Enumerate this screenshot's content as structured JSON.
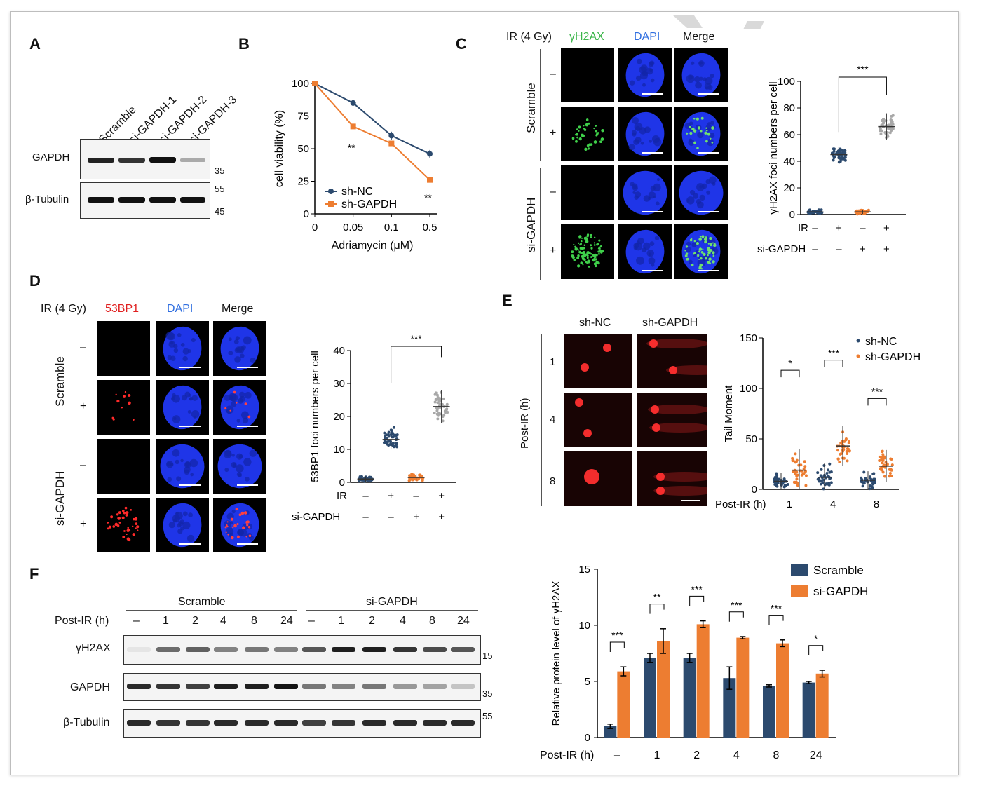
{
  "panels": {
    "A": "A",
    "B": "B",
    "C": "C",
    "D": "D",
    "E": "E",
    "F": "F"
  },
  "panelA": {
    "lanes": [
      "Scramble",
      "si-GAPDH-1",
      "si-GAPDH-2",
      "si-GAPDH-3"
    ],
    "rows": [
      "GAPDH",
      "β-Tubulin"
    ],
    "markers": [
      "35",
      "55",
      "45"
    ]
  },
  "panelC": {
    "ir_header": "IR (4 Gy)",
    "channels": [
      "γH2AX",
      "DAPI",
      "Merge"
    ],
    "groups": [
      "Scramble",
      "si-GAPDH"
    ],
    "row_signs": [
      "–",
      "+",
      "–",
      "+"
    ]
  },
  "panelD": {
    "ir_header": "IR (4 Gy)",
    "channels": [
      "53BP1",
      "DAPI",
      "Merge"
    ],
    "groups": [
      "Scramble",
      "si-GAPDH"
    ],
    "row_signs": [
      "–",
      "+",
      "–",
      "+"
    ]
  },
  "panelE": {
    "columns": [
      "sh-NC",
      "sh-GAPDH"
    ],
    "axis_label": "Post-IR (h)",
    "rows": [
      "1",
      "4",
      "8"
    ]
  },
  "panelF": {
    "groups": [
      "Scramble",
      "si-GAPDH"
    ],
    "post_ir_label": "Post-IR (h)",
    "timepoints": [
      "–",
      "1",
      "2",
      "4",
      "8",
      "24",
      "–",
      "1",
      "2",
      "4",
      "8",
      "24"
    ],
    "rows": [
      "γH2AX",
      "GAPDH",
      "β-Tubulin"
    ],
    "markers": [
      "15",
      "35",
      "55"
    ]
  },
  "chart_data": [
    {
      "id": "B",
      "type": "line",
      "xlabel": "Adriamycin (μM)",
      "ylabel": "cell viability (%)",
      "categories": [
        "0",
        "0.05",
        "0.1",
        "0.5"
      ],
      "ylim": [
        0,
        100
      ],
      "yticks": [
        "0",
        "25",
        "50",
        "75",
        "100"
      ],
      "series": [
        {
          "name": "sh-NC",
          "values": [
            100,
            85,
            60,
            46
          ],
          "errors": [
            0,
            2,
            3,
            3
          ]
        },
        {
          "name": "sh-GAPDH",
          "values": [
            100,
            67,
            54,
            26
          ],
          "errors": [
            0,
            2,
            1,
            2
          ]
        }
      ],
      "annotations": [
        "**",
        "**"
      ],
      "colors": {
        "sh-NC": "#2c4a6e",
        "sh-GAPDH": "#ed7d31"
      }
    },
    {
      "id": "C",
      "type": "scatter",
      "ylabel": "γH2AX foci numbers per cell",
      "ylim": [
        0,
        100
      ],
      "yticks": [
        "0",
        "20",
        "40",
        "60",
        "80",
        "100"
      ],
      "groups": [
        {
          "ir": "–",
          "si": "–",
          "mean": 2,
          "sd": 1.5
        },
        {
          "ir": "+",
          "si": "–",
          "mean": 45,
          "sd": 6
        },
        {
          "ir": "–",
          "si": "+",
          "mean": 2,
          "sd": 1.5
        },
        {
          "ir": "+",
          "si": "+",
          "mean": 66,
          "sd": 10
        }
      ],
      "row_labels": [
        "IR",
        "si-GAPDH"
      ],
      "significance": "***",
      "colors": [
        "#2c4a6e",
        "#2c4a6e",
        "#ed7d31",
        "#a8a8a8"
      ]
    },
    {
      "id": "D",
      "type": "scatter",
      "ylabel": "53BP1 foci numbers per cell",
      "ylim": [
        0,
        40
      ],
      "yticks": [
        "0",
        "10",
        "20",
        "30",
        "40"
      ],
      "groups": [
        {
          "ir": "–",
          "si": "–",
          "mean": 1,
          "sd": 0.8
        },
        {
          "ir": "+",
          "si": "–",
          "mean": 13,
          "sd": 3
        },
        {
          "ir": "–",
          "si": "+",
          "mean": 1.5,
          "sd": 1
        },
        {
          "ir": "+",
          "si": "+",
          "mean": 23,
          "sd": 5
        }
      ],
      "row_labels": [
        "IR",
        "si-GAPDH"
      ],
      "significance": "***",
      "colors": [
        "#2c4a6e",
        "#2c4a6e",
        "#ed7d31",
        "#a8a8a8"
      ]
    },
    {
      "id": "E",
      "type": "scatter",
      "ylabel": "Tail Moment",
      "xlabel": "Post-IR (h)",
      "categories": [
        "1",
        "4",
        "8"
      ],
      "ylim": [
        0,
        150
      ],
      "yticks": [
        "0",
        "50",
        "100",
        "150"
      ],
      "series": [
        {
          "name": "sh-NC",
          "means": [
            8,
            12,
            9
          ],
          "sds": [
            8,
            14,
            9
          ]
        },
        {
          "name": "sh-GAPDH",
          "means": [
            19,
            43,
            23
          ],
          "sds": [
            21,
            20,
            16
          ]
        }
      ],
      "significance": [
        "*",
        "***",
        "***"
      ],
      "colors": {
        "sh-NC": "#2c4a6e",
        "sh-GAPDH": "#ed7d31"
      }
    },
    {
      "id": "F",
      "type": "bar",
      "ylabel": "Relative protein level of γH2AX",
      "xlabel": "Post-IR (h)",
      "categories": [
        "–",
        "1",
        "2",
        "4",
        "8",
        "24"
      ],
      "ylim": [
        0,
        15
      ],
      "yticks": [
        "0",
        "5",
        "10",
        "15"
      ],
      "series": [
        {
          "name": "Scramble",
          "values": [
            1.0,
            7.1,
            7.1,
            5.3,
            4.6,
            4.9
          ],
          "errors": [
            0.2,
            0.4,
            0.4,
            1.0,
            0.1,
            0.1
          ]
        },
        {
          "name": "si-GAPDH",
          "values": [
            5.9,
            8.6,
            10.1,
            8.9,
            8.4,
            5.7
          ],
          "errors": [
            0.4,
            1.1,
            0.3,
            0.1,
            0.3,
            0.3
          ]
        }
      ],
      "significance": [
        "***",
        "**",
        "***",
        "***",
        "***",
        "*"
      ],
      "colors": {
        "Scramble": "#2c4a6e",
        "si-GAPDH": "#ed7d31"
      }
    }
  ]
}
